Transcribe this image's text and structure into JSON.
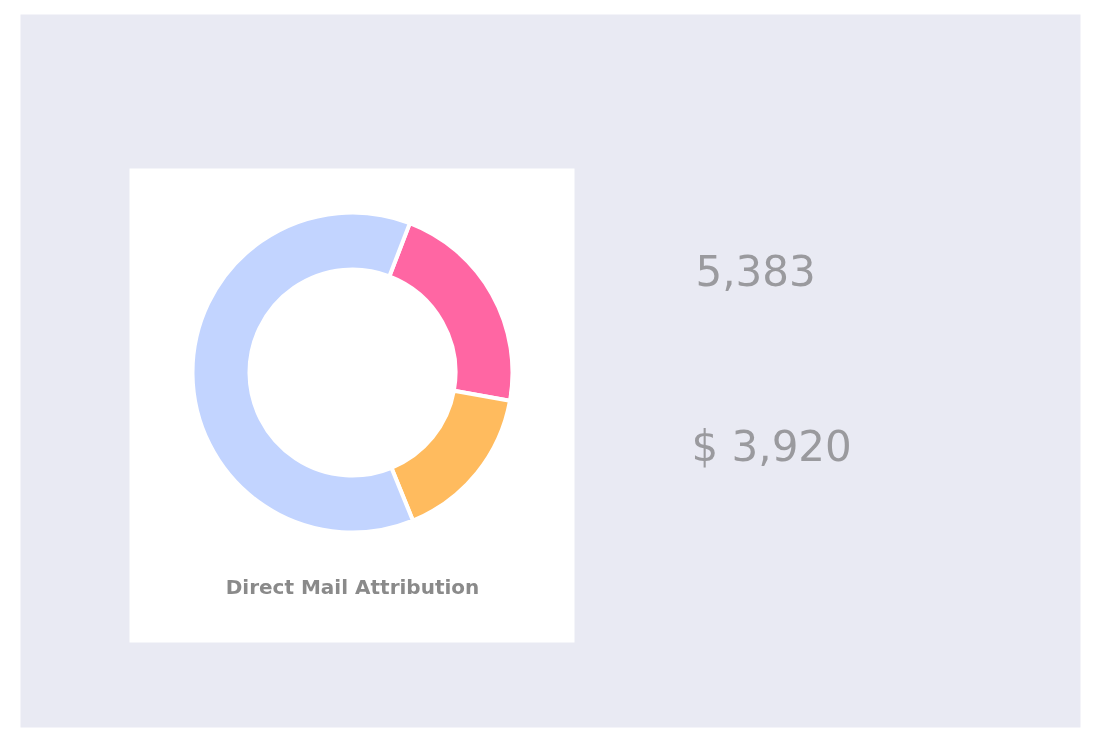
{
  "chart_data": [
    {
      "type": "donut",
      "title": "Direct Mail Attribution",
      "categories": [
        null,
        null,
        null
      ],
      "values": [
        22,
        16,
        62
      ],
      "colors": [
        "#ff66a3",
        "#ffbb5e",
        "#c2d4ff"
      ]
    },
    {
      "type": "other",
      "annotations": [
        "5,383",
        "$ 3,920"
      ]
    }
  ]
}
